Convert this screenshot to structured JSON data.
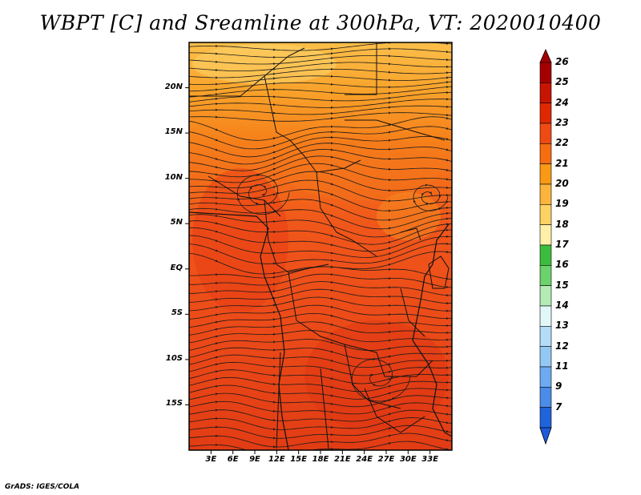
{
  "title": "WBPT [C] and Sreamline at 300hPa, VT: 2020010400",
  "credit": "GrADS: IGES/COLA",
  "map": {
    "lon_range": [
      0,
      36
    ],
    "lat_range": [
      -20,
      25
    ],
    "lat_ticks": [
      {
        "value": 20,
        "label": "20N"
      },
      {
        "value": 15,
        "label": "15N"
      },
      {
        "value": 10,
        "label": "10N"
      },
      {
        "value": 5,
        "label": "5N"
      },
      {
        "value": 0,
        "label": "EQ"
      },
      {
        "value": -5,
        "label": "5S"
      },
      {
        "value": -10,
        "label": "10S"
      },
      {
        "value": -15,
        "label": "15S"
      }
    ],
    "lon_ticks": [
      {
        "value": 3,
        "label": "3E"
      },
      {
        "value": 6,
        "label": "6E"
      },
      {
        "value": 9,
        "label": "9E"
      },
      {
        "value": 12,
        "label": "12E"
      },
      {
        "value": 15,
        "label": "15E"
      },
      {
        "value": 18,
        "label": "18E"
      },
      {
        "value": 21,
        "label": "21E"
      },
      {
        "value": 24,
        "label": "24E"
      },
      {
        "value": 27,
        "label": "27E"
      },
      {
        "value": 30,
        "label": "30E"
      },
      {
        "value": 33,
        "label": "33E"
      }
    ]
  },
  "colorbar": {
    "levels": [
      {
        "label": "26",
        "color": "#a50000"
      },
      {
        "label": "25",
        "color": "#c81400"
      },
      {
        "label": "24",
        "color": "#e02800"
      },
      {
        "label": "23",
        "color": "#f04a14"
      },
      {
        "label": "22",
        "color": "#f86c10"
      },
      {
        "label": "21",
        "color": "#fa9a14"
      },
      {
        "label": "20",
        "color": "#fcb43c"
      },
      {
        "label": "19",
        "color": "#fdd264"
      },
      {
        "label": "18",
        "color": "#fef0a8"
      },
      {
        "label": "17",
        "color": "#3cbc3c"
      },
      {
        "label": "16",
        "color": "#6cd26c"
      },
      {
        "label": "15",
        "color": "#b4eab4"
      },
      {
        "label": "14",
        "color": "#e2f8f8"
      },
      {
        "label": "13",
        "color": "#b4dcf8"
      },
      {
        "label": "12",
        "color": "#94c8f4"
      },
      {
        "label": "11",
        "color": "#6eaaf0"
      },
      {
        "label": "9",
        "color": "#4a8ce8"
      },
      {
        "label": "7",
        "color": "#2064dc"
      }
    ],
    "top_color": "#a50000",
    "bottom_color": "#1e5adc"
  }
}
